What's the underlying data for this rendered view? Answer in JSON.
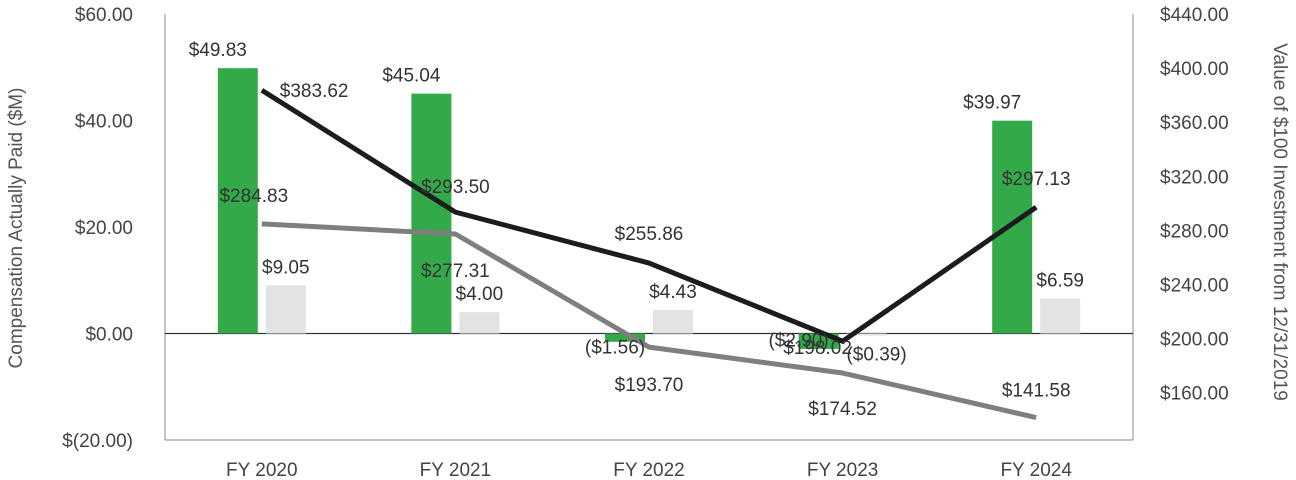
{
  "chart_data": {
    "type": "bar+line",
    "categories": [
      "FY 2020",
      "FY 2021",
      "FY 2022",
      "FY 2023",
      "FY 2024"
    ],
    "y_left": {
      "label": "Compensation Actually Paid ($M)",
      "range": [
        -20,
        60
      ],
      "ticks": [
        60,
        40,
        20,
        0,
        -20
      ],
      "tick_labels": [
        "$60.00",
        "$40.00",
        "$20.00",
        "$0.00",
        "$(20.00)"
      ]
    },
    "y_right": {
      "label": "Value of $100 Investment from 12/31/2019",
      "range": [
        125,
        440
      ],
      "ticks": [
        440,
        400,
        360,
        320,
        280,
        240,
        200,
        160
      ],
      "tick_labels": [
        "$440.00",
        "$400.00",
        "$360.00",
        "$320.00",
        "$280.00",
        "$240.00",
        "$200.00",
        "$160.00"
      ]
    },
    "bar_series": [
      {
        "values": [
          49.83,
          45.04,
          -1.56,
          -2.9,
          39.97
        ],
        "labels": [
          "$49.83",
          "$45.04",
          "($1.56)",
          "($2.90)",
          "$39.97"
        ],
        "color": "#34a94a"
      },
      {
        "values": [
          9.05,
          4.0,
          4.43,
          -0.39,
          6.59
        ],
        "labels": [
          "$9.05",
          "$4.00",
          "$4.43",
          "($0.39)",
          "$6.59"
        ],
        "color": "#e2e3e5"
      }
    ],
    "line_series": [
      {
        "values": [
          383.62,
          293.5,
          255.86,
          198.02,
          297.13
        ],
        "labels": [
          "$383.62",
          "$293.50",
          "$255.86",
          "$198.02",
          "$297.13"
        ],
        "color": "#1c1c1c"
      },
      {
        "values": [
          284.83,
          277.31,
          193.7,
          174.52,
          141.58
        ],
        "labels": [
          "$284.83",
          "$277.31",
          "$193.70",
          "$174.52",
          "$141.58"
        ],
        "color": "#7f7f7f"
      }
    ],
    "grid": false,
    "legend": "none"
  }
}
